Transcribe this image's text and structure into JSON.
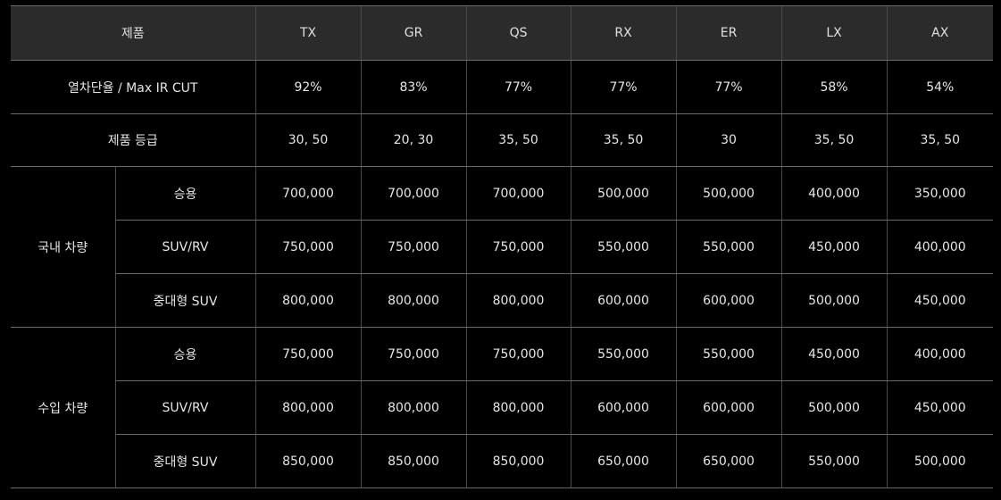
{
  "table": {
    "header": {
      "product_label": "제품",
      "columns": [
        "TX",
        "GR",
        "QS",
        "RX",
        "ER",
        "LX",
        "AX"
      ]
    },
    "feature_row": {
      "label": "열차단율 / Max IR CUT",
      "values": [
        "92%",
        "83%",
        "77%",
        "77%",
        "77%",
        "58%",
        "54%"
      ]
    },
    "grade_row": {
      "label": "제품 등급",
      "values": [
        "30, 50",
        "20, 30",
        "35, 50",
        "35, 50",
        "30",
        "35, 50",
        "35, 50"
      ]
    },
    "groups": [
      {
        "label": "국내 차량",
        "rows": [
          {
            "label": "승용",
            "values": [
              "700,000",
              "700,000",
              "700,000",
              "500,000",
              "500,000",
              "400,000",
              "350,000"
            ]
          },
          {
            "label": "SUV/RV",
            "values": [
              "750,000",
              "750,000",
              "750,000",
              "550,000",
              "550,000",
              "450,000",
              "400,000"
            ]
          },
          {
            "label": "중대형 SUV",
            "values": [
              "800,000",
              "800,000",
              "800,000",
              "600,000",
              "600,000",
              "500,000",
              "450,000"
            ]
          }
        ]
      },
      {
        "label": "수입 차량",
        "rows": [
          {
            "label": "승용",
            "values": [
              "750,000",
              "750,000",
              "750,000",
              "550,000",
              "550,000",
              "450,000",
              "400,000"
            ]
          },
          {
            "label": "SUV/RV",
            "values": [
              "800,000",
              "800,000",
              "800,000",
              "600,000",
              "600,000",
              "500,000",
              "450,000"
            ]
          },
          {
            "label": "중대형 SUV",
            "values": [
              "850,000",
              "850,000",
              "850,000",
              "650,000",
              "650,000",
              "550,000",
              "500,000"
            ]
          }
        ]
      }
    ]
  }
}
